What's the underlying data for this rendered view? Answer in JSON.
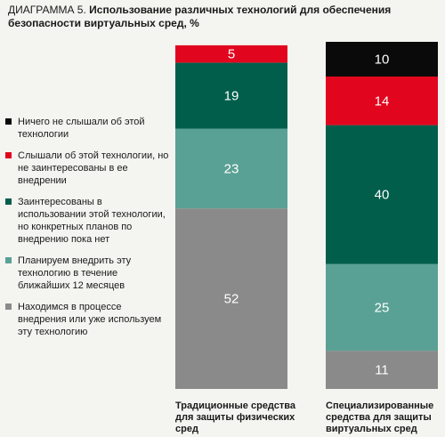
{
  "title": {
    "prefix": "ДИАГРАММА 5.",
    "text": "Использование различных технологий для обеспечения безопасности виртуальных сред, %"
  },
  "legend": [
    {
      "label": "Ничего не слышали об этой технологии",
      "color": "#0a0a0a"
    },
    {
      "label": "Слышали об этой технологии, но не заинтересованы в ее внедрении",
      "color": "#e1061e"
    },
    {
      "label": "Заинтересованы в использовании этой технологии, но конкретных планов по внедрению пока нет",
      "color": "#005e4b"
    },
    {
      "label": "Планируем внедрить эту технологию в течение ближайших 12 месяцев",
      "color": "#5aa195"
    },
    {
      "label": "Находимся в процессе внедрения или уже используем эту технологию",
      "color": "#8a8a8a"
    }
  ],
  "chart_data": {
    "type": "bar",
    "stacked": true,
    "categories": [
      "Традиционные средства для защиты физических сред",
      "Специализированные средства для защиты виртуальных сред"
    ],
    "series": [
      {
        "name": "Находимся в процессе внедрения или уже используем эту технологию",
        "values": [
          52,
          11
        ],
        "color": "#8a8a8a"
      },
      {
        "name": "Планируем внедрить эту технологию в течение ближайших 12 месяцев",
        "values": [
          23,
          25
        ],
        "color": "#5aa195"
      },
      {
        "name": "Заинтересованы в использовании этой технологии, но конкретных планов по внедрению пока нет",
        "values": [
          19,
          40
        ],
        "color": "#005e4b"
      },
      {
        "name": "Слышали об этой технологии, но не заинтересованы в ее внедрении",
        "values": [
          5,
          14
        ],
        "color": "#e1061e"
      },
      {
        "name": "Ничего не слышали об этой технологии",
        "values": [
          0,
          10
        ],
        "color": "#0a0a0a"
      }
    ],
    "ylim": [
      0,
      100
    ]
  }
}
